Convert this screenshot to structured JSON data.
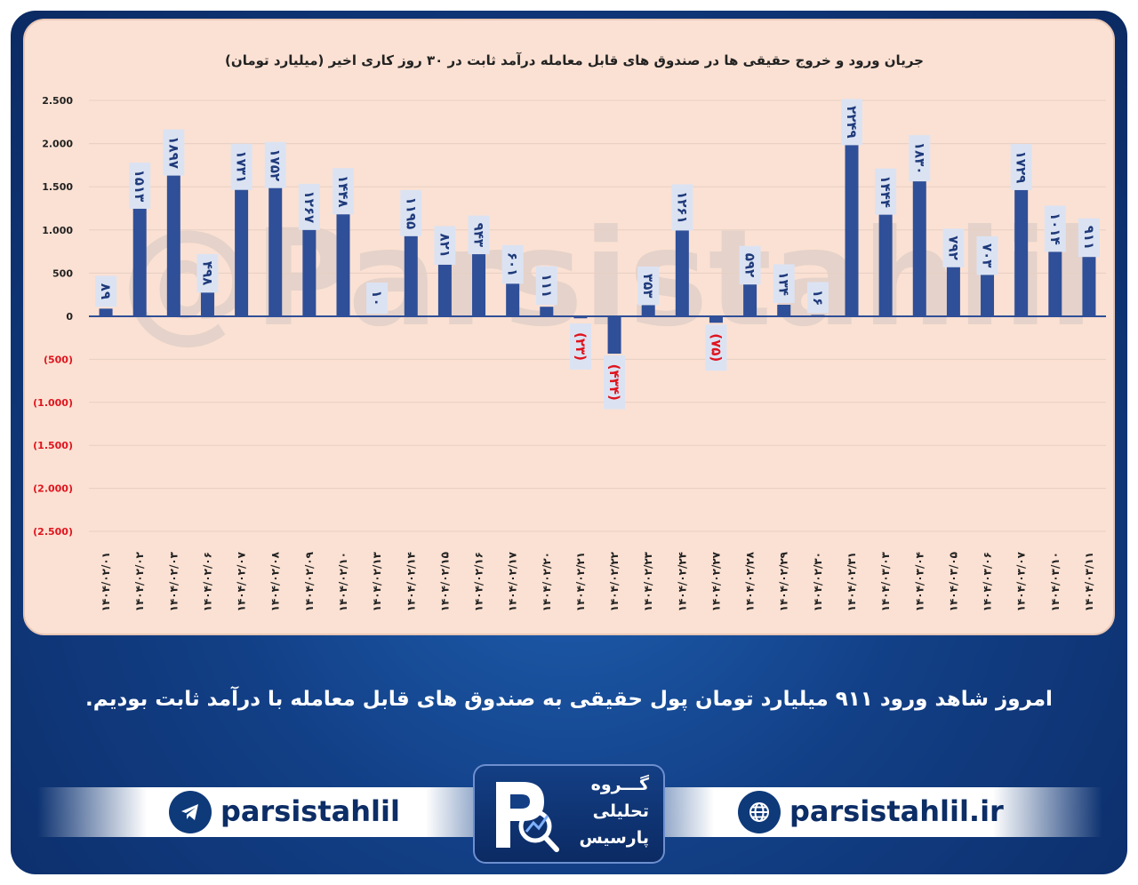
{
  "chart_data": {
    "type": "bar",
    "title": "جریان ورود و خروج حقیقی ها در صندوق های قابل معامله درآمد ثابت در ۳۰ روز کاری اخیر (میلیارد تومان)",
    "categories": [
      "۱۴۰۴/۰۲/۰۱",
      "۱۴۰۴/۰۲/۰۲",
      "۱۴۰۴/۰۲/۰۳",
      "۱۴۰۴/۰۲/۰۶",
      "۱۴۰۴/۰۲/۰۷",
      "۱۴۰۴/۰۲/۰۸",
      "۱۴۰۴/۰۲/۰۹",
      "۱۴۰۴/۰۲/۱۰",
      "۱۴۰۴/۰۲/۱۳",
      "۱۴۰۴/۰۲/۱۴",
      "۱۴۰۴/۰۲/۱۵",
      "۱۴۰۴/۰۲/۱۶",
      "۱۴۰۴/۰۲/۱۷",
      "۱۴۰۴/۰۲/۲۰",
      "۱۴۰۴/۰۲/۲۱",
      "۱۴۰۴/۰۲/۲۲",
      "۱۴۰۴/۰۲/۲۳",
      "۱۴۰۴/۰۲/۲۴",
      "۱۴۰۴/۰۲/۲۷",
      "۱۴۰۴/۰۲/۲۸",
      "۱۴۰۴/۰۲/۲۹",
      "۱۴۰۴/۰۲/۳۰",
      "۱۴۰۴/۰۲/۳۱",
      "۱۴۰۴/۰۳/۰۳",
      "۱۴۰۴/۰۳/۰۴",
      "۱۴۰۴/۰۳/۰۵",
      "۱۴۰۴/۰۳/۰۶",
      "۱۴۰۴/۰۳/۰۷",
      "۱۴۰۴/۰۳/۱۰",
      "۱۴۰۴/۰۳/۱۱"
    ],
    "values": [
      89,
      1513,
      1897,
      498,
      1731,
      1752,
      1267,
      1448,
      10,
      1195,
      821,
      943,
      601,
      111,
      -23,
      -434,
      353,
      1261,
      -75,
      592,
      134,
      16,
      2249,
      1444,
      1830,
      792,
      703,
      1729,
      1014,
      911
    ],
    "data_labels": [
      "۸۹",
      "۱۵۱۳",
      "۱۸۹۷",
      "۴۹۸",
      "۱۷۳۱",
      "۱۷۵۲",
      "۱۲۶۷",
      "۱۴۴۸",
      "۱۰",
      "۱۱۹۵",
      "۸۲۱",
      "۹۴۳",
      "۶۰۱",
      "۱۱۱",
      "(۲۳)",
      "(۴۳۴)",
      "۳۵۳",
      "۱۲۶۱",
      "(۷۵)",
      "۵۹۲",
      "۱۳۴",
      "۱۶",
      "۲۲۴۹",
      "۱۴۴۴",
      "۱۸۳۰",
      "۷۹۲",
      "۷۰۳",
      "۱۷۲۹",
      "۱۰۱۴",
      "۹۱۱"
    ],
    "y_ticks": [
      2500,
      2000,
      1500,
      1000,
      500,
      0,
      -500,
      -1000,
      -1500,
      -2000,
      -2500
    ],
    "y_tick_labels": [
      "2.500",
      "2.000",
      "1.500",
      "1.000",
      "500",
      "0",
      "(500)",
      "(1.000)",
      "(1.500)",
      "(2.000)",
      "(2.500)"
    ],
    "ylim": [
      -2500,
      2500
    ],
    "grid": true,
    "bar_color": "#2f4f98",
    "label_box_color": "#dbe3f3",
    "label_text_color": "#1f3a7a",
    "negative_color": "#e0141e",
    "panel_color": "#fbe1d3",
    "watermark": "@Parsistahlil"
  },
  "caption": "امروز شاهد ورود ۹۱۱ میلیارد تومان پول حقیقی به صندوق های قابل معامله با درآمد ثابت بودیم.",
  "footer": {
    "telegram_handle": "parsistahlil",
    "website": "parsistahlil.ir",
    "logo_lines": [
      "گـــروه",
      "تحلیلی",
      "پارسیس"
    ],
    "telegram_icon": "telegram-icon",
    "web_icon": "globe-icon",
    "brand_color": "#0c2d66"
  }
}
